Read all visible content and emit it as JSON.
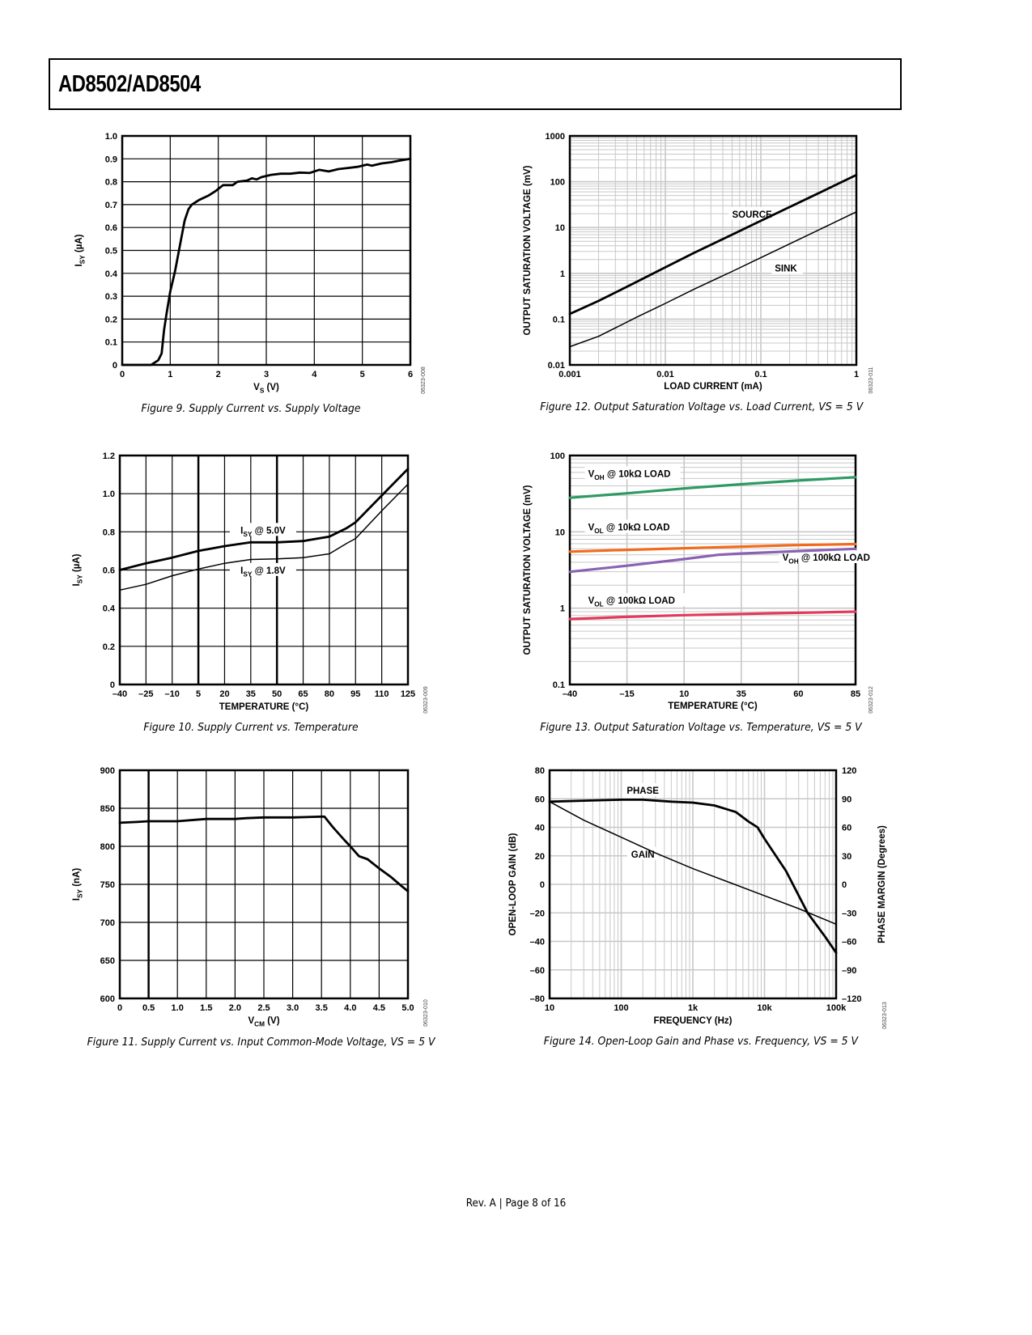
{
  "header": {
    "title": "AD8502/AD8504"
  },
  "footer": {
    "text": "Rev. A | Page 8 of 16"
  },
  "colors": {
    "voh10k": "#2e9a63",
    "vol10k": "#f26b1d",
    "voh100k": "#8a62b4",
    "vol100k": "#e23a5a",
    "grid_light": "#c8c8c8",
    "ink": "#000000"
  },
  "chart_data": [
    {
      "id": "fig9",
      "type": "line",
      "caption": "Figure 9. Supply Current vs. Supply Voltage",
      "code": "06323-008",
      "xlabel": "VS (V)",
      "ylabel": "ISY (µA)",
      "xlim": [
        0,
        6
      ],
      "ylim": [
        0,
        1.0
      ],
      "xticks": [
        "0",
        "1",
        "2",
        "3",
        "4",
        "5",
        "6"
      ],
      "yticks": [
        "0",
        "0.1",
        "0.2",
        "0.3",
        "0.4",
        "0.5",
        "0.6",
        "0.7",
        "0.8",
        "0.9",
        "1.0"
      ],
      "xscale": "linear",
      "yscale": "linear",
      "grid": true,
      "series": [
        {
          "name": "ISY",
          "weight": "heavy",
          "x": [
            0,
            0.6,
            0.75,
            0.82,
            0.87,
            0.92,
            1.0,
            1.1,
            1.2,
            1.3,
            1.38,
            1.45,
            1.6,
            1.8,
            1.95,
            2.1,
            2.3,
            2.4,
            2.6,
            2.7,
            2.8,
            2.9,
            3.1,
            3.3,
            3.5,
            3.7,
            3.9,
            4.1,
            4.3,
            4.5,
            4.7,
            4.9,
            5.1,
            5.2,
            5.4,
            5.6,
            5.8,
            6.0
          ],
          "y": [
            0,
            0.0,
            0.02,
            0.05,
            0.15,
            0.22,
            0.32,
            0.41,
            0.52,
            0.63,
            0.68,
            0.7,
            0.72,
            0.74,
            0.76,
            0.785,
            0.785,
            0.8,
            0.805,
            0.815,
            0.81,
            0.82,
            0.83,
            0.835,
            0.835,
            0.84,
            0.838,
            0.852,
            0.845,
            0.855,
            0.86,
            0.865,
            0.875,
            0.87,
            0.88,
            0.885,
            0.893,
            0.9
          ]
        }
      ],
      "annotations": []
    },
    {
      "id": "fig12",
      "type": "line",
      "caption": "Figure 12. Output Saturation Voltage vs. Load Current, VS = 5 V",
      "code": "06323-011",
      "xlabel": "LOAD CURRENT (mA)",
      "ylabel": "OUTPUT SATURATION VOLTAGE (mV)",
      "xlim": [
        0.001,
        1
      ],
      "ylim": [
        0.01,
        1000
      ],
      "xticks": [
        "0.001",
        "0.01",
        "0.1",
        "1"
      ],
      "yticks": [
        "0.01",
        "0.1",
        "1",
        "10",
        "100",
        "1000"
      ],
      "xscale": "log",
      "yscale": "log",
      "grid": true,
      "series": [
        {
          "name": "SOURCE",
          "weight": "heavy",
          "x": [
            0.001,
            0.002,
            0.005,
            0.01,
            0.02,
            0.05,
            0.1,
            0.2,
            0.5,
            1
          ],
          "y": [
            0.13,
            0.25,
            0.65,
            1.35,
            2.8,
            7,
            14,
            28,
            70,
            140
          ]
        },
        {
          "name": "SINK",
          "weight": "light",
          "x": [
            0.001,
            0.002,
            0.005,
            0.01,
            0.02,
            0.05,
            0.1,
            0.2,
            0.5,
            1
          ],
          "y": [
            0.025,
            0.042,
            0.11,
            0.22,
            0.45,
            1.1,
            2.2,
            4.4,
            11,
            22
          ]
        }
      ],
      "annotations": [
        {
          "text": "SOURCE",
          "x": 0.05,
          "y": 18
        },
        {
          "text": "SINK",
          "x": 0.14,
          "y": 1.2
        }
      ]
    },
    {
      "id": "fig10",
      "type": "line",
      "caption": "Figure 10. Supply Current vs. Temperature",
      "code": "06323-009",
      "xlabel": "TEMPERATURE (°C)",
      "ylabel": "ISY (µA)",
      "xlim": [
        -40,
        125
      ],
      "ylim": [
        0,
        1.2
      ],
      "xticks": [
        "–40",
        "–25",
        "–10",
        "5",
        "20",
        "35",
        "50",
        "65",
        "80",
        "95",
        "110",
        "125"
      ],
      "yticks": [
        "0",
        "0.2",
        "0.4",
        "0.6",
        "0.8",
        "1.0",
        "1.2"
      ],
      "xscale": "linear",
      "yscale": "linear",
      "grid": true,
      "series": [
        {
          "name": "ISY @ 5.0V",
          "weight": "heavy",
          "x": [
            -40,
            -25,
            -10,
            5,
            20,
            35,
            50,
            65,
            80,
            90,
            95,
            110,
            125
          ],
          "y": [
            0.6,
            0.635,
            0.665,
            0.7,
            0.725,
            0.745,
            0.745,
            0.752,
            0.775,
            0.82,
            0.85,
            0.99,
            1.13
          ]
        },
        {
          "name": "ISY @ 1.8V",
          "weight": "light",
          "x": [
            -40,
            -25,
            -10,
            5,
            20,
            35,
            50,
            65,
            80,
            90,
            95,
            110,
            125
          ],
          "y": [
            0.495,
            0.525,
            0.57,
            0.605,
            0.635,
            0.655,
            0.658,
            0.665,
            0.685,
            0.74,
            0.765,
            0.91,
            1.05
          ]
        }
      ],
      "annotations": [
        {
          "text": "ISY @ 5.0V",
          "x": 42,
          "y": 0.8
        },
        {
          "text": "ISY @ 1.8V",
          "x": 42,
          "y": 0.59
        }
      ]
    },
    {
      "id": "fig13",
      "type": "line",
      "caption": "Figure 13. Output Saturation Voltage vs. Temperature, VS = 5 V",
      "code": "06323-012",
      "xlabel": "TEMPERATURE (°C)",
      "ylabel": "OUTPUT SATURATION VOLTAGE (mV)",
      "xlim": [
        -40,
        85
      ],
      "ylim": [
        0.1,
        100
      ],
      "xticks": [
        "–40",
        "–15",
        "10",
        "35",
        "60",
        "85"
      ],
      "yticks": [
        "0.1",
        "1",
        "10",
        "100"
      ],
      "xscale": "linear",
      "yscale": "log",
      "grid": true,
      "series": [
        {
          "name": "VOH @ 10kΩ LOAD",
          "color_key": "voh10k",
          "x": [
            -40,
            -15,
            10,
            35,
            60,
            85
          ],
          "y": [
            28,
            32,
            37,
            42,
            47,
            52
          ]
        },
        {
          "name": "VOL @ 10kΩ LOAD",
          "color_key": "vol10k",
          "x": [
            -40,
            -15,
            10,
            35,
            60,
            85
          ],
          "y": [
            5.5,
            5.8,
            6.1,
            6.4,
            6.7,
            6.9
          ]
        },
        {
          "name": "VOH @ 100kΩ LOAD",
          "color_key": "voh100k",
          "x": [
            -40,
            -15,
            10,
            25,
            35,
            60,
            85
          ],
          "y": [
            3.0,
            3.6,
            4.4,
            5.0,
            5.2,
            5.6,
            6.0
          ]
        },
        {
          "name": "VOL @ 100kΩ LOAD",
          "color_key": "vol100k",
          "x": [
            -40,
            -15,
            10,
            35,
            60,
            85
          ],
          "y": [
            0.72,
            0.77,
            0.81,
            0.84,
            0.87,
            0.9
          ]
        }
      ],
      "annotations": [
        {
          "text": "VOH @ 10kΩ LOAD",
          "x": -32,
          "y": 55
        },
        {
          "text": "VOL @ 10kΩ LOAD",
          "x": -32,
          "y": 11
        },
        {
          "text": "VOH @ 100kΩ LOAD",
          "x": 53,
          "y": 4.4
        },
        {
          "text": "VOL @ 100kΩ LOAD",
          "x": -32,
          "y": 1.2
        }
      ]
    },
    {
      "id": "fig11",
      "type": "line",
      "caption": "Figure 11. Supply Current vs. Input Common-Mode Voltage, VS = 5 V",
      "code": "06323-010",
      "xlabel": "VCM (V)",
      "ylabel": "ISY (nA)",
      "xlim": [
        0,
        5.0
      ],
      "ylim": [
        600,
        900
      ],
      "xticks": [
        "0",
        "0.5",
        "1.0",
        "1.5",
        "2.0",
        "2.5",
        "3.0",
        "3.5",
        "4.0",
        "4.5",
        "5.0"
      ],
      "yticks": [
        "600",
        "650",
        "700",
        "750",
        "800",
        "850",
        "900"
      ],
      "xscale": "linear",
      "yscale": "linear",
      "grid": true,
      "series": [
        {
          "name": "ISY",
          "weight": "heavy",
          "x": [
            0,
            0.3,
            0.5,
            1.0,
            1.5,
            2.0,
            2.2,
            2.5,
            3.0,
            3.5,
            3.55,
            3.7,
            3.9,
            4.0,
            4.15,
            4.3,
            4.5,
            4.7,
            4.9,
            5.0
          ],
          "y": [
            831,
            832,
            833,
            833,
            836,
            836,
            837,
            838,
            838,
            839,
            839,
            825,
            808,
            800,
            787,
            783,
            771,
            760,
            747,
            741
          ]
        }
      ],
      "annotations": []
    },
    {
      "id": "fig14",
      "type": "line",
      "caption": "Figure 14. Open-Loop Gain and Phase vs. Frequency, VS = 5 V",
      "code": "06323-013",
      "xlabel": "FREQUENCY (Hz)",
      "ylabel": "OPEN-LOOP GAIN (dB)",
      "y2label": "PHASE MARGIN (Degrees)",
      "xlim": [
        10,
        100000
      ],
      "ylim": [
        -80,
        80
      ],
      "y2lim": [
        -120,
        120
      ],
      "xticks": [
        "10",
        "100",
        "1k",
        "10k",
        "100k"
      ],
      "yticks": [
        "–80",
        "–60",
        "–40",
        "–20",
        "0",
        "20",
        "40",
        "60",
        "80"
      ],
      "y2ticks": [
        "–120",
        "–90",
        "–60",
        "–30",
        "0",
        "30",
        "60",
        "90",
        "120"
      ],
      "xscale": "log",
      "yscale": "linear",
      "grid": true,
      "series": [
        {
          "name": "GAIN",
          "axis": "left",
          "weight": "light",
          "x": [
            10,
            30,
            100,
            300,
            1000,
            3000,
            10000,
            30000,
            100000
          ],
          "y": [
            58,
            45,
            33,
            22,
            11,
            2,
            -8,
            -17,
            -28
          ]
        },
        {
          "name": "PHASE",
          "axis": "right",
          "weight": "heavy",
          "x": [
            10,
            30,
            100,
            200,
            500,
            1000,
            2000,
            4000,
            6000,
            8000,
            10000,
            20000,
            40000,
            70000,
            100000
          ],
          "y": [
            87,
            88,
            89,
            89,
            87,
            86,
            83,
            76,
            66,
            60,
            48,
            14,
            -30,
            -55,
            -72
          ]
        }
      ],
      "annotations": [
        {
          "text": "PHASE",
          "x": 200,
          "y": 66
        },
        {
          "text": "GAIN",
          "x": 200,
          "y": 20
        }
      ]
    }
  ]
}
